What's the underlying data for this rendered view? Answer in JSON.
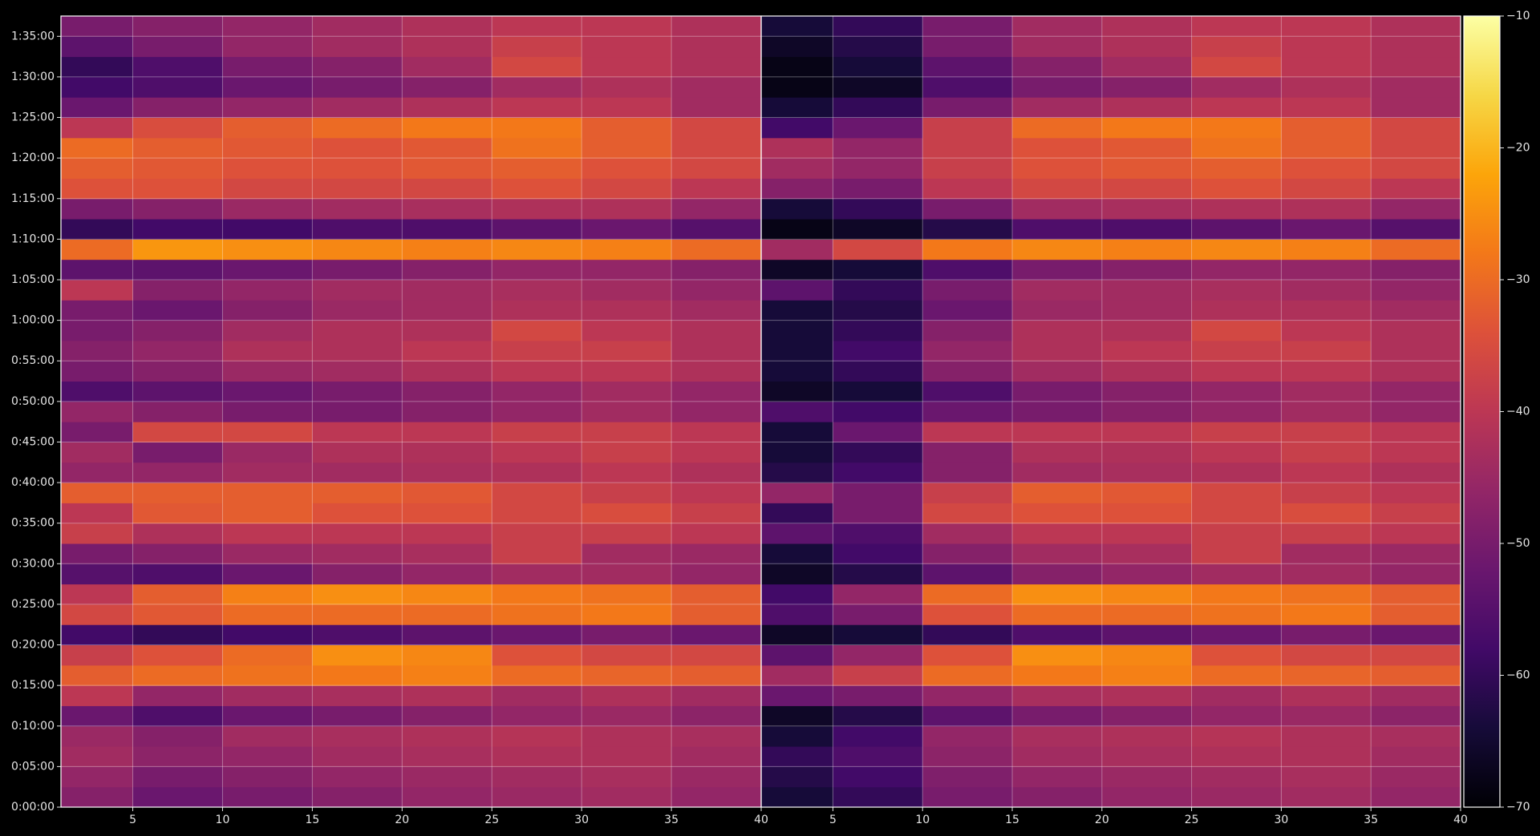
{
  "chart_data": [
    {
      "type": "heatmap",
      "colormap": "inferno",
      "clim": [
        -70,
        -10
      ],
      "grid": true,
      "xlim": [
        1,
        40
      ],
      "ylim": [
        0,
        5850
      ],
      "xticks": [
        5,
        10,
        15,
        20,
        25,
        30,
        35,
        40
      ],
      "yticks": [
        {
          "value": 0,
          "label": "0:00:00"
        },
        {
          "value": 300,
          "label": "0:05:00"
        },
        {
          "value": 600,
          "label": "0:10:00"
        },
        {
          "value": 900,
          "label": "0:15:00"
        },
        {
          "value": 1200,
          "label": "0:20:00"
        },
        {
          "value": 1500,
          "label": "0:25:00"
        },
        {
          "value": 1800,
          "label": "0:30:00"
        },
        {
          "value": 2100,
          "label": "0:35:00"
        },
        {
          "value": 2400,
          "label": "0:40:00"
        },
        {
          "value": 2700,
          "label": "0:45:00"
        },
        {
          "value": 3000,
          "label": "0:50:00"
        },
        {
          "value": 3300,
          "label": "0:55:00"
        },
        {
          "value": 3600,
          "label": "1:00:00"
        },
        {
          "value": 3900,
          "label": "1:05:00"
        },
        {
          "value": 4200,
          "label": "1:10:00"
        },
        {
          "value": 4500,
          "label": "1:15:00"
        },
        {
          "value": 4800,
          "label": "1:20:00"
        },
        {
          "value": 5100,
          "label": "1:25:00"
        },
        {
          "value": 5400,
          "label": "1:30:00"
        },
        {
          "value": 5700,
          "label": "1:35:00"
        }
      ],
      "x_edges": [
        1,
        5,
        10,
        15,
        20,
        25,
        30,
        35,
        40
      ],
      "y_edges": [
        0,
        150,
        300,
        450,
        600,
        750,
        900,
        1050,
        1200,
        1350,
        1500,
        1650,
        1800,
        1950,
        2100,
        2250,
        2400,
        2550,
        2700,
        2850,
        3000,
        3150,
        3300,
        3450,
        3600,
        3750,
        3900,
        4050,
        4200,
        4350,
        4500,
        4650,
        4800,
        4950,
        5100,
        5250,
        5400,
        5550,
        5700,
        5850
      ],
      "values": [
        [
          -48,
          -52,
          -50,
          -48,
          -46,
          -45,
          -44,
          -46
        ],
        [
          -46,
          -50,
          -48,
          -46,
          -45,
          -44,
          -43,
          -45
        ],
        [
          -44,
          -47,
          -46,
          -44,
          -43,
          -42,
          -42,
          -44
        ],
        [
          -45,
          -48,
          -44,
          -43,
          -42,
          -41,
          -42,
          -43
        ],
        [
          -52,
          -56,
          -52,
          -50,
          -48,
          -46,
          -45,
          -47
        ],
        [
          -40,
          -46,
          -44,
          -43,
          -42,
          -44,
          -42,
          -44
        ],
        [
          -32,
          -30,
          -29,
          -28,
          -27,
          -30,
          -31,
          -32
        ],
        [
          -38,
          -34,
          -30,
          -25,
          -26,
          -34,
          -36,
          -36
        ],
        [
          -58,
          -60,
          -58,
          -56,
          -54,
          -52,
          -50,
          -52
        ],
        [
          -36,
          -33,
          -30,
          -30,
          -30,
          -29,
          -28,
          -32
        ],
        [
          -40,
          -32,
          -27,
          -25,
          -26,
          -28,
          -29,
          -32
        ],
        [
          -55,
          -56,
          -52,
          -48,
          -46,
          -44,
          -44,
          -46
        ],
        [
          -50,
          -48,
          -45,
          -44,
          -43,
          -38,
          -44,
          -45
        ],
        [
          -38,
          -42,
          -40,
          -40,
          -40,
          -38,
          -38,
          -40
        ],
        [
          -40,
          -33,
          -32,
          -34,
          -34,
          -36,
          -35,
          -38
        ],
        [
          -32,
          -32,
          -32,
          -32,
          -33,
          -36,
          -38,
          -40
        ],
        [
          -46,
          -46,
          -44,
          -44,
          -43,
          -42,
          -40,
          -42
        ],
        [
          -44,
          -50,
          -45,
          -42,
          -42,
          -40,
          -38,
          -40
        ],
        [
          -50,
          -36,
          -36,
          -40,
          -40,
          -38,
          -38,
          -40
        ],
        [
          -46,
          -48,
          -50,
          -50,
          -48,
          -46,
          -44,
          -46
        ],
        [
          -56,
          -54,
          -52,
          -50,
          -48,
          -46,
          -44,
          -46
        ],
        [
          -50,
          -48,
          -45,
          -44,
          -42,
          -40,
          -40,
          -42
        ],
        [
          -48,
          -46,
          -42,
          -42,
          -40,
          -38,
          -38,
          -42
        ],
        [
          -50,
          -48,
          -44,
          -42,
          -42,
          -36,
          -40,
          -42
        ],
        [
          -50,
          -52,
          -48,
          -45,
          -44,
          -42,
          -42,
          -44
        ],
        [
          -40,
          -48,
          -46,
          -44,
          -44,
          -43,
          -44,
          -46
        ],
        [
          -54,
          -54,
          -52,
          -50,
          -48,
          -46,
          -46,
          -48
        ],
        [
          -30,
          -24,
          -25,
          -26,
          -27,
          -26,
          -27,
          -30
        ],
        [
          -60,
          -58,
          -58,
          -56,
          -56,
          -54,
          -52,
          -55
        ],
        [
          -50,
          -48,
          -45,
          -44,
          -43,
          -42,
          -42,
          -46
        ],
        [
          -34,
          -34,
          -36,
          -36,
          -36,
          -34,
          -36,
          -40
        ],
        [
          -32,
          -33,
          -34,
          -34,
          -33,
          -32,
          -34,
          -36
        ],
        [
          -30,
          -32,
          -33,
          -34,
          -33,
          -29,
          -32,
          -36
        ],
        [
          -40,
          -35,
          -32,
          -30,
          -28,
          -28,
          -32,
          -36
        ],
        [
          -52,
          -48,
          -46,
          -44,
          -42,
          -40,
          -40,
          -44
        ],
        [
          -58,
          -56,
          -52,
          -50,
          -48,
          -44,
          -42,
          -44
        ],
        [
          -60,
          -56,
          -50,
          -48,
          -44,
          -36,
          -40,
          -42
        ],
        [
          -54,
          -50,
          -46,
          -44,
          -42,
          -38,
          -40,
          -42
        ],
        [
          -50,
          -48,
          -46,
          -44,
          -42,
          -40,
          -40,
          -42
        ]
      ]
    },
    {
      "type": "heatmap",
      "colormap": "inferno",
      "clim": [
        -70,
        -10
      ],
      "grid": true,
      "xlim": [
        1,
        40
      ],
      "ylim": [
        0,
        5850
      ],
      "xticks": [
        5,
        10,
        15,
        20,
        25,
        30,
        35,
        40
      ],
      "colorbar_ticks": [
        {
          "value": -70,
          "label": "−70"
        },
        {
          "value": -60,
          "label": "−60"
        },
        {
          "value": -50,
          "label": "−50"
        },
        {
          "value": -40,
          "label": "−40"
        },
        {
          "value": -30,
          "label": "−30"
        },
        {
          "value": -20,
          "label": "−20"
        },
        {
          "value": -10,
          "label": "−10"
        }
      ],
      "x_edges": [
        1,
        5,
        10,
        15,
        20,
        25,
        30,
        35,
        40
      ],
      "y_edges": [
        0,
        150,
        300,
        450,
        600,
        750,
        900,
        1050,
        1200,
        1350,
        1500,
        1650,
        1800,
        1950,
        2100,
        2250,
        2400,
        2550,
        2700,
        2850,
        3000,
        3150,
        3300,
        3450,
        3600,
        3750,
        3900,
        4050,
        4200,
        4350,
        4500,
        4650,
        4800,
        4950,
        5100,
        5250,
        5400,
        5550,
        5700,
        5850
      ],
      "values": [
        [
          -64,
          -60,
          -50,
          -48,
          -46,
          -45,
          -44,
          -46
        ],
        [
          -62,
          -58,
          -49,
          -46,
          -45,
          -44,
          -43,
          -45
        ],
        [
          -60,
          -56,
          -47,
          -44,
          -43,
          -42,
          -42,
          -44
        ],
        [
          -64,
          -58,
          -46,
          -43,
          -42,
          -41,
          -42,
          -43
        ],
        [
          -66,
          -62,
          -54,
          -50,
          -48,
          -46,
          -45,
          -47
        ],
        [
          -52,
          -50,
          -46,
          -43,
          -42,
          -44,
          -42,
          -44
        ],
        [
          -44,
          -38,
          -30,
          -28,
          -27,
          -30,
          -31,
          -32
        ],
        [
          -54,
          -46,
          -34,
          -25,
          -26,
          -34,
          -36,
          -36
        ],
        [
          -66,
          -64,
          -60,
          -56,
          -54,
          -52,
          -50,
          -52
        ],
        [
          -56,
          -50,
          -34,
          -30,
          -30,
          -29,
          -28,
          -32
        ],
        [
          -58,
          -46,
          -30,
          -25,
          -26,
          -28,
          -29,
          -32
        ],
        [
          -66,
          -62,
          -54,
          -48,
          -46,
          -44,
          -44,
          -46
        ],
        [
          -64,
          -58,
          -48,
          -44,
          -43,
          -38,
          -44,
          -45
        ],
        [
          -54,
          -56,
          -44,
          -40,
          -40,
          -38,
          -38,
          -40
        ],
        [
          -60,
          -50,
          -36,
          -34,
          -34,
          -36,
          -35,
          -38
        ],
        [
          -46,
          -50,
          -38,
          -32,
          -33,
          -36,
          -38,
          -40
        ],
        [
          -62,
          -58,
          -48,
          -44,
          -43,
          -42,
          -40,
          -42
        ],
        [
          -64,
          -60,
          -48,
          -42,
          -42,
          -40,
          -38,
          -40
        ],
        [
          -64,
          -52,
          -40,
          -40,
          -40,
          -38,
          -38,
          -40
        ],
        [
          -56,
          -58,
          -52,
          -50,
          -48,
          -46,
          -44,
          -46
        ],
        [
          -66,
          -64,
          -56,
          -50,
          -48,
          -46,
          -44,
          -46
        ],
        [
          -64,
          -60,
          -48,
          -44,
          -42,
          -40,
          -40,
          -42
        ],
        [
          -64,
          -58,
          -46,
          -42,
          -40,
          -38,
          -38,
          -42
        ],
        [
          -64,
          -60,
          -48,
          -42,
          -42,
          -36,
          -40,
          -42
        ],
        [
          -64,
          -62,
          -52,
          -45,
          -44,
          -42,
          -42,
          -44
        ],
        [
          -54,
          -60,
          -50,
          -44,
          -44,
          -43,
          -44,
          -46
        ],
        [
          -66,
          -64,
          -56,
          -50,
          -48,
          -46,
          -46,
          -48
        ],
        [
          -44,
          -36,
          -28,
          -26,
          -27,
          -26,
          -27,
          -30
        ],
        [
          -68,
          -66,
          -62,
          -56,
          -56,
          -54,
          -52,
          -55
        ],
        [
          -64,
          -60,
          -50,
          -44,
          -43,
          -42,
          -42,
          -46
        ],
        [
          -48,
          -50,
          -40,
          -36,
          -36,
          -34,
          -36,
          -40
        ],
        [
          -44,
          -46,
          -38,
          -34,
          -33,
          -32,
          -34,
          -36
        ],
        [
          -42,
          -46,
          -38,
          -34,
          -33,
          -29,
          -32,
          -36
        ],
        [
          -58,
          -52,
          -38,
          -30,
          -28,
          -28,
          -32,
          -36
        ],
        [
          -64,
          -60,
          -50,
          -44,
          -42,
          -40,
          -40,
          -44
        ],
        [
          -68,
          -66,
          -56,
          -50,
          -48,
          -44,
          -42,
          -44
        ],
        [
          -68,
          -64,
          -54,
          -48,
          -44,
          -36,
          -40,
          -42
        ],
        [
          -66,
          -62,
          -50,
          -44,
          -42,
          -38,
          -40,
          -42
        ],
        [
          -64,
          -60,
          -50,
          -44,
          -42,
          -40,
          -40,
          -42
        ]
      ]
    }
  ]
}
